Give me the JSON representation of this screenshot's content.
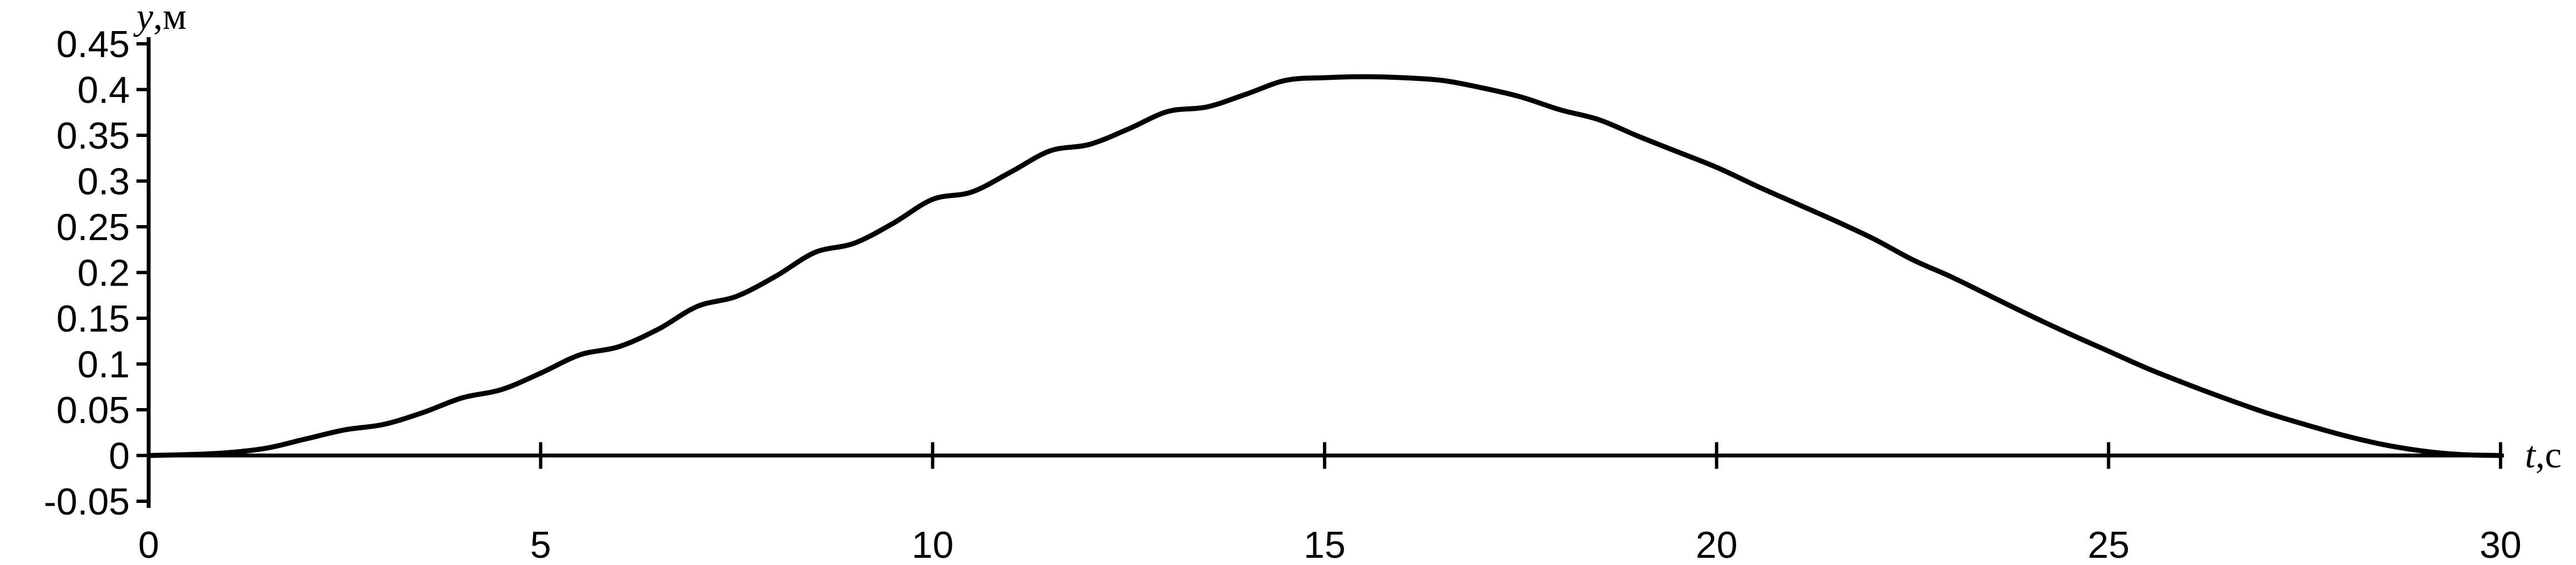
{
  "chart_data": {
    "type": "line",
    "title": "",
    "xlabel": {
      "var": "t",
      "unit": ",с"
    },
    "ylabel": {
      "var": "y",
      "unit": ",м"
    },
    "xlim": [
      0,
      30
    ],
    "ylim": [
      -0.05,
      0.45
    ],
    "x_ticks": [
      "0",
      "5",
      "10",
      "15",
      "20",
      "25",
      "30"
    ],
    "y_ticks": [
      "-0.05",
      "0",
      "0.05",
      "0.1",
      "0.15",
      "0.2",
      "0.25",
      "0.3",
      "0.35",
      "0.4",
      "0.45"
    ],
    "grid": false,
    "legend": "none",
    "line_color": "#000000",
    "series": [
      {
        "x": [
          0,
          0.5,
          1,
          1.5,
          2,
          2.5,
          3,
          3.5,
          4,
          4.5,
          5,
          5.5,
          6,
          6.5,
          7,
          7.5,
          8,
          8.5,
          9,
          9.5,
          10,
          10.5,
          11,
          11.5,
          12,
          12.5,
          13,
          13.5,
          14,
          14.5,
          15,
          15.5,
          16,
          16.5,
          17,
          17.5,
          18,
          18.5,
          19,
          19.5,
          20,
          20.5,
          21,
          21.5,
          22,
          22.5,
          23,
          23.5,
          24,
          24.5,
          25,
          25.5,
          26,
          26.5,
          27,
          27.5,
          28,
          28.5,
          29,
          29.5,
          30
        ],
        "y": [
          0,
          0.001,
          0.003,
          0.008,
          0.018,
          0.028,
          0.034,
          0.047,
          0.063,
          0.072,
          0.09,
          0.11,
          0.119,
          0.138,
          0.163,
          0.174,
          0.196,
          0.222,
          0.232,
          0.254,
          0.28,
          0.288,
          0.31,
          0.333,
          0.34,
          0.357,
          0.376,
          0.381,
          0.395,
          0.41,
          0.413,
          0.414,
          0.413,
          0.41,
          0.402,
          0.392,
          0.378,
          0.367,
          0.349,
          0.332,
          0.315,
          0.295,
          0.276,
          0.257,
          0.237,
          0.214,
          0.195,
          0.174,
          0.153,
          0.133,
          0.114,
          0.095,
          0.078,
          0.062,
          0.047,
          0.034,
          0.022,
          0.012,
          0.005,
          0.001,
          0
        ]
      }
    ]
  }
}
